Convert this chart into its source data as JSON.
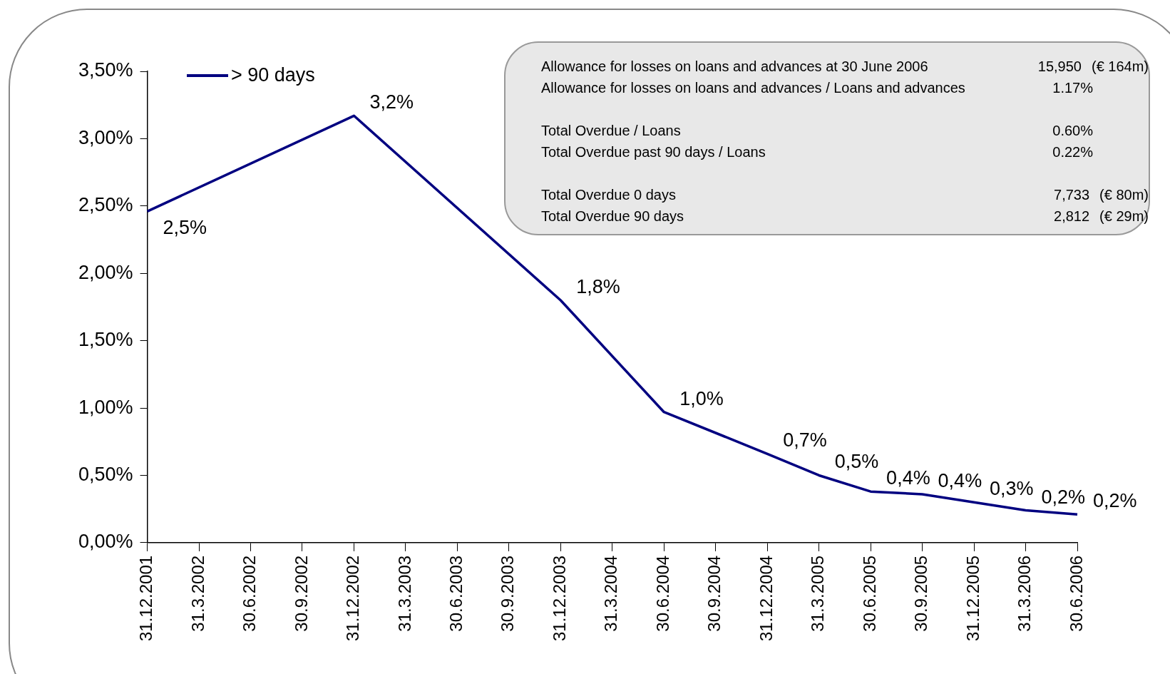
{
  "chart_data": {
    "type": "line",
    "categories": [
      "31.12.2001",
      "31.3.2002",
      "30.6.2002",
      "30.9.2002",
      "31.12.2002",
      "31.3.2003",
      "30.6.2003",
      "30.9.2003",
      "31.12.2003",
      "31.3.2004",
      "30.6.2004",
      "30.9.2004",
      "31.12.2004",
      "31.3.2005",
      "30.6.2005",
      "30.9.2005",
      "31.12.2005",
      "31.3.2006",
      "30.6.2006"
    ],
    "series": [
      {
        "name": "> 90 days",
        "color": "#000080",
        "values": [
          2.46,
          null,
          null,
          null,
          3.17,
          null,
          null,
          null,
          1.8,
          null,
          0.97,
          null,
          0.66,
          0.5,
          0.38,
          0.36,
          0.3,
          0.24,
          0.21
        ],
        "value_labels": [
          "2,5%",
          null,
          null,
          null,
          "3,2%",
          null,
          null,
          null,
          "1,8%",
          null,
          "1,0%",
          null,
          "0,7%",
          "0,5%",
          "0,4%",
          "0,4%",
          "0,3%",
          "0,2%",
          "0,2%"
        ]
      }
    ],
    "ylim": [
      0,
      3.5
    ],
    "yticks": [
      {
        "value": 0,
        "label": "0,00%"
      },
      {
        "value": 0.5,
        "label": "0,50%"
      },
      {
        "value": 1,
        "label": "1,00%"
      },
      {
        "value": 1.5,
        "label": "1,50%"
      },
      {
        "value": 2,
        "label": "2,00%"
      },
      {
        "value": 2.5,
        "label": "2,50%"
      },
      {
        "value": 3,
        "label": "3,00%"
      },
      {
        "value": 3.5,
        "label": "3,50%"
      }
    ],
    "grid": false,
    "legend": "top left",
    "marker": "none",
    "line_style": "solid",
    "annotations": [
      "Allowance for losses on loans and advances at 30 June 2006\t15,950\t(€ 164m)",
      "Allowance for losses on loans and advances / Loans and advances\t1.17%\t",
      "Total Overdue / Loans\t0.60%\t",
      "Total Overdue past 90 days / Loans\t0.22%\t",
      "Total Overdue 0 days\t7,733\t(€ 80m)",
      "Total Overdue 90 days\t2,812\t(€ 29m)"
    ]
  }
}
